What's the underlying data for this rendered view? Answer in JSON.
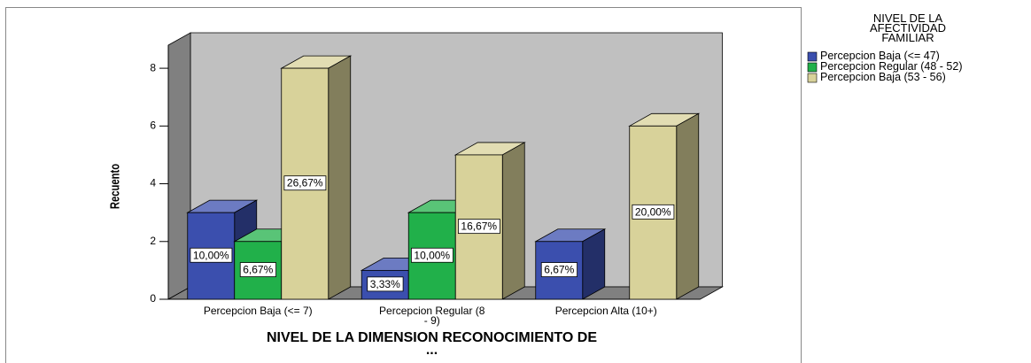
{
  "chart_data": {
    "type": "bar3d",
    "x_label": "NIVEL DE LA DIMENSION RECONOCIMIENTO DE ...",
    "y_label": "Recuento",
    "legend_title": "NIVEL DE LA AFECTIVIDAD FAMILIAR",
    "legend_position": "right",
    "categories": [
      "Percepcion Baja (<= 7)",
      "Percepcion Regular (8 - 9)",
      "Percepcion Alta (10+)"
    ],
    "series": [
      {
        "name": "Percepcion Baja (<= 47)",
        "color": "#3b4fae",
        "values": [
          3,
          1,
          2
        ],
        "value_labels": [
          "10,00%",
          "3,33%",
          "6,67%"
        ]
      },
      {
        "name": "Percepcion Regular (48 - 52)",
        "color": "#21b04a",
        "values": [
          2,
          3,
          0
        ],
        "value_labels": [
          "6,67%",
          "10,00%",
          null
        ]
      },
      {
        "name": "Percepcion Baja (53 - 56)",
        "color": "#d8d29a",
        "values": [
          8,
          5,
          6
        ],
        "value_labels": [
          "26,67%",
          "16,67%",
          "20,00%"
        ]
      }
    ],
    "ylim": [
      0,
      8.8
    ],
    "yticks": [
      0,
      2,
      4,
      6,
      8
    ],
    "grid": false
  }
}
